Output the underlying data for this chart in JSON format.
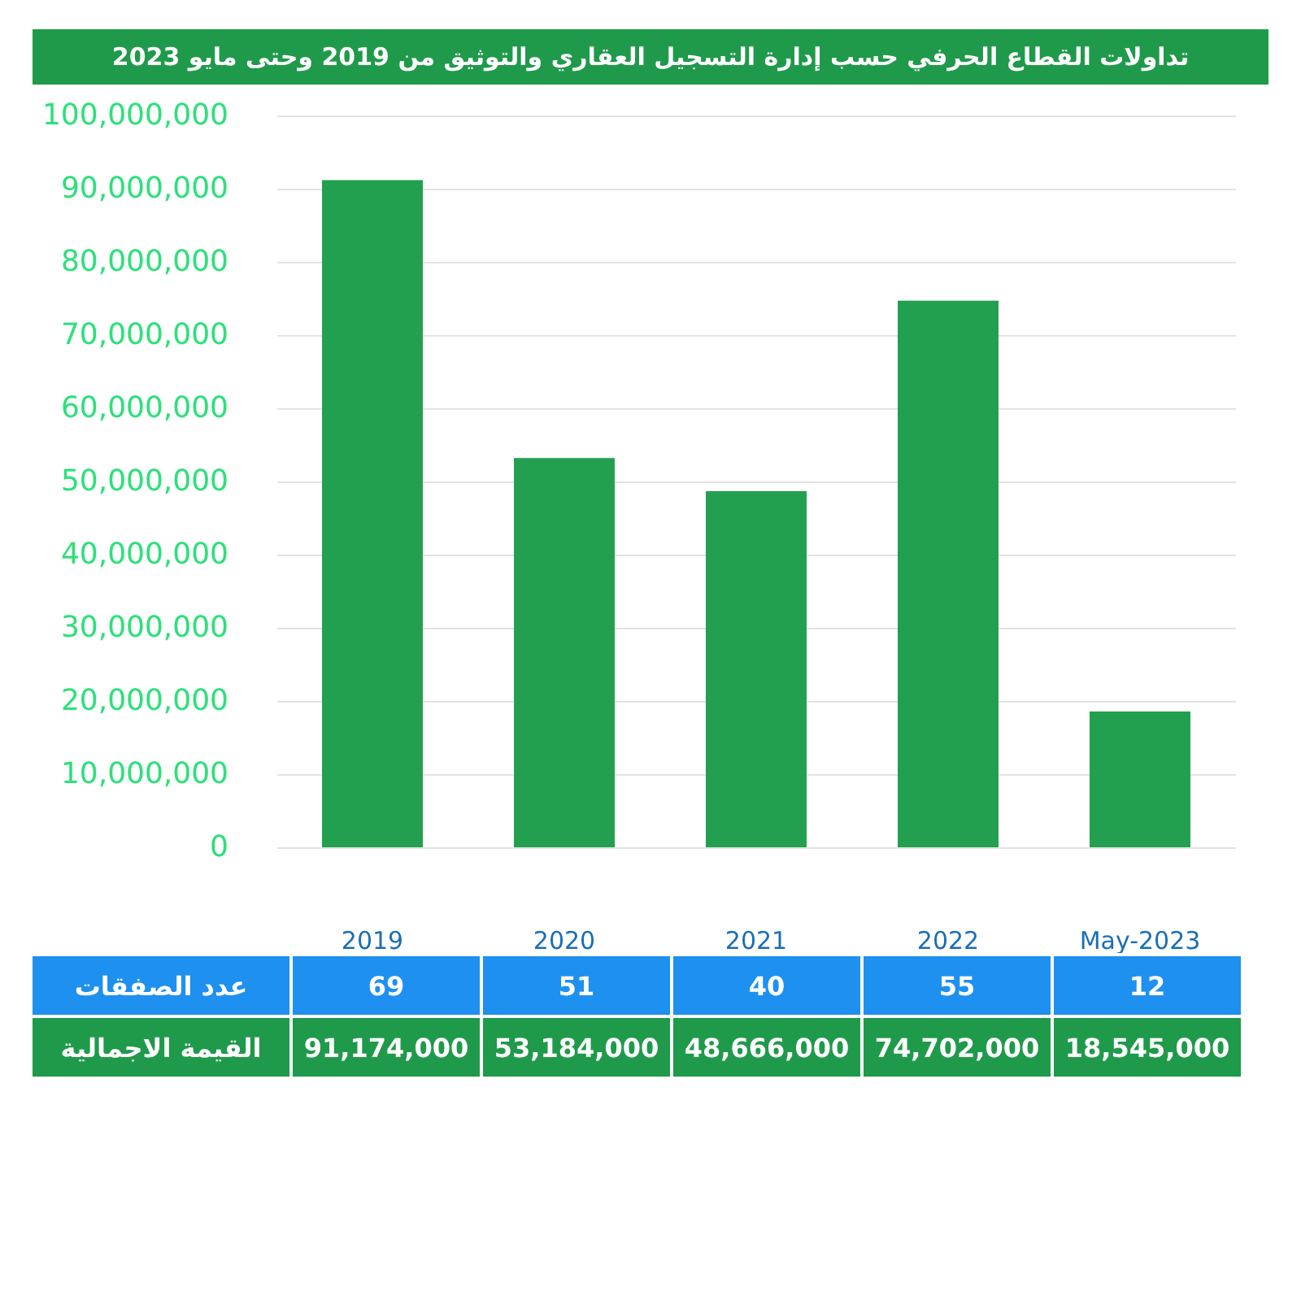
{
  "chart_data": {
    "type": "bar",
    "title": "تداولات القطاع الحرفي حسب إدارة التسجيل العقاري والتوثيق من 2019 وحتى مايو 2023",
    "categories": [
      "2019",
      "2020",
      "2021",
      "2022",
      "May-2023"
    ],
    "series": [
      {
        "name": "القيمة الاجمالية",
        "color": "#23a04f",
        "values": [
          91174000,
          53184000,
          48666000,
          74702000,
          18545000
        ]
      }
    ],
    "ylim": [
      0,
      100000000
    ],
    "yticks": [
      {
        "value": 0,
        "label": "0"
      },
      {
        "value": 10000000,
        "label": "10,000,000"
      },
      {
        "value": 20000000,
        "label": "20,000,000"
      },
      {
        "value": 30000000,
        "label": "30,000,000"
      },
      {
        "value": 40000000,
        "label": "40,000,000"
      },
      {
        "value": 50000000,
        "label": "50,000,000"
      },
      {
        "value": 60000000,
        "label": "60,000,000"
      },
      {
        "value": 70000000,
        "label": "70,000,000"
      },
      {
        "value": 80000000,
        "label": "80,000,000"
      },
      {
        "value": 90000000,
        "label": "90,000,000"
      },
      {
        "value": 100000000,
        "label": "100,000,000"
      }
    ],
    "grid": "y",
    "value_labels": [
      "91,174,000",
      "53,184,000",
      "48,666,000",
      "74,702,000",
      "18,545,000"
    ],
    "annotations": [
      "عدد الصفقات",
      "69",
      "51",
      "40",
      "55",
      "12"
    ]
  }
}
